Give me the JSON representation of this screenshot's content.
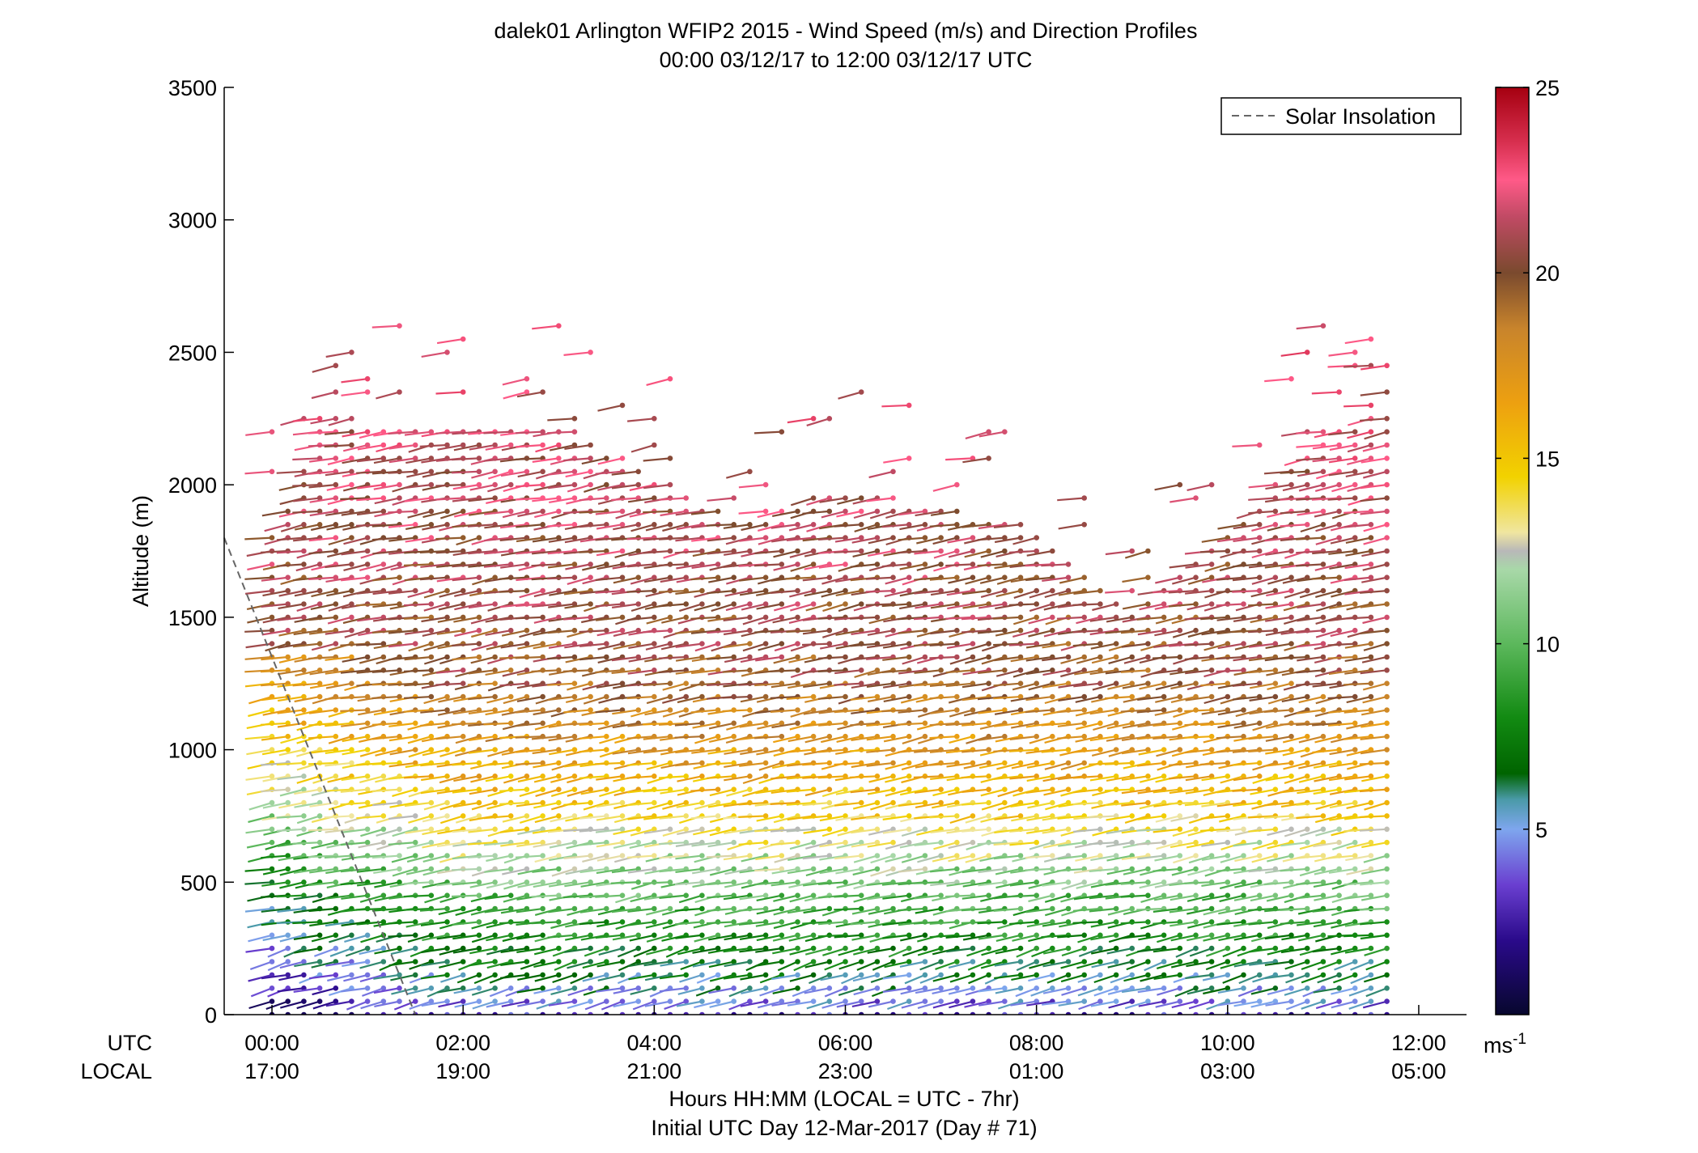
{
  "chart_data": {
    "type": "scatter",
    "subtype": "wind-barb-profile",
    "title": "dalek01 Arlington WFIP2 2015 - Wind Speed (m/s) and Direction Profiles",
    "subtitle": "00:00 03/12/17 to 12:00 03/12/17  UTC",
    "ylabel": "Altitude (m)",
    "xlabel": "Hours HH:MM  (LOCAL = UTC - 7hr)",
    "xlabel2": "Initial UTC Day 12-Mar-2017 (Day # 71)",
    "x_row_labels": [
      "UTC",
      "LOCAL"
    ],
    "x_range_hours_utc": [
      -0.5,
      12.5
    ],
    "ylim": [
      0,
      3500
    ],
    "y_ticks": [
      0,
      500,
      1000,
      1500,
      2000,
      2500,
      3000,
      3500
    ],
    "x_ticks_utc_hours": [
      0,
      2,
      4,
      6,
      8,
      10,
      12
    ],
    "x_tick_labels_utc": [
      "00:00",
      "02:00",
      "04:00",
      "06:00",
      "08:00",
      "10:00",
      "12:00"
    ],
    "x_tick_labels_local": [
      "17:00",
      "19:00",
      "21:00",
      "23:00",
      "01:00",
      "03:00",
      "05:00"
    ],
    "legend": {
      "entries": [
        "Solar Insolation"
      ],
      "placement": "top-right"
    },
    "solar_insolation": {
      "color": "#666666",
      "points": [
        [
          -0.5,
          1800
        ],
        [
          0.5,
          900
        ],
        [
          1.0,
          450
        ],
        [
          1.5,
          0
        ]
      ]
    },
    "colorbar": {
      "unit_label": "ms",
      "unit_exponent": "-1",
      "ticks": [
        5,
        10,
        15,
        20,
        25
      ],
      "range": [
        0,
        25
      ],
      "stops": [
        [
          0,
          "#07072e"
        ],
        [
          2,
          "#2a0a8a"
        ],
        [
          3.5,
          "#6a3fd0"
        ],
        [
          5,
          "#7ea6ee"
        ],
        [
          5.8,
          "#4a9aa8"
        ],
        [
          6.5,
          "#006400"
        ],
        [
          8,
          "#128a12"
        ],
        [
          10,
          "#5cb85c"
        ],
        [
          12,
          "#a8d8a8"
        ],
        [
          12.5,
          "#b8b8b8"
        ],
        [
          13,
          "#f0e6a0"
        ],
        [
          14.5,
          "#f2d200"
        ],
        [
          16.5,
          "#eda010"
        ],
        [
          18.5,
          "#c8842c"
        ],
        [
          20,
          "#7a4a2e"
        ],
        [
          21.5,
          "#c04a64"
        ],
        [
          22.5,
          "#ff5a88"
        ],
        [
          23.5,
          "#d83050"
        ],
        [
          25,
          "#a50010"
        ]
      ]
    },
    "profile_times_utc": {
      "start": 0,
      "end": 11.75,
      "step": 0.166667
    },
    "altitude_gates": {
      "start": 0,
      "step": 50,
      "max": 3000
    },
    "profile_model": {
      "speed_layers": [
        {
          "below_m": 120,
          "speed_ms": 6
        },
        {
          "below_m": 450,
          "speed_ms": 10
        },
        {
          "below_m": 800,
          "speed_ms": 15
        },
        {
          "below_m": 1300,
          "speed_ms": 20
        },
        {
          "below_m": 1800,
          "speed_ms": 21
        },
        {
          "below_m": 3000,
          "speed_ms": 23
        }
      ],
      "top_m_by_hour": [
        [
          0,
          1800
        ],
        [
          0.5,
          2200
        ],
        [
          2,
          2200
        ],
        [
          3,
          2250
        ],
        [
          4,
          2050
        ],
        [
          5,
          1850
        ],
        [
          6,
          2000
        ],
        [
          8,
          1850
        ],
        [
          9,
          1500
        ],
        [
          10,
          1800
        ],
        [
          11,
          2200
        ],
        [
          12,
          2300
        ]
      ],
      "direction_from_deg": 250
    }
  }
}
